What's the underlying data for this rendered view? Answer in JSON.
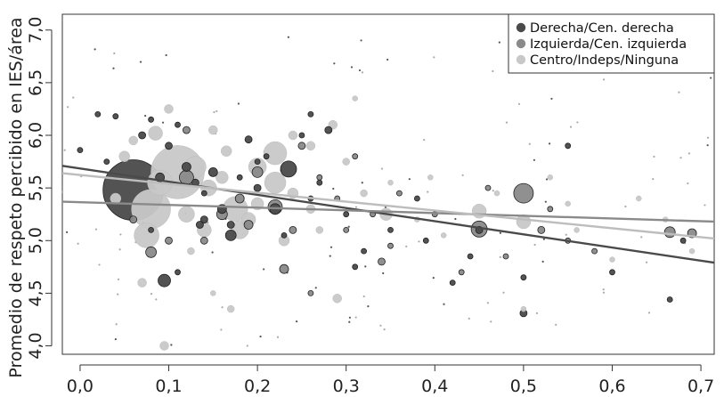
{
  "chart_data": {
    "type": "scatter",
    "title": "",
    "xlabel": "",
    "ylabel": "Promedio de respeto percibido en IES/área",
    "xlim": [
      -0.02,
      0.715
    ],
    "ylim": [
      3.92,
      7.15
    ],
    "x_ticks": [
      "0,0",
      "0,1",
      "0,2",
      "0,3",
      "0,4",
      "0,5",
      "0,6",
      "0,7"
    ],
    "x_tick_values": [
      0.0,
      0.1,
      0.2,
      0.3,
      0.4,
      0.5,
      0.6,
      0.7
    ],
    "y_ticks": [
      "4,0",
      "4,5",
      "5,0",
      "5,5",
      "6,0",
      "6,5",
      "7,0"
    ],
    "y_tick_values": [
      4.0,
      4.5,
      5.0,
      5.5,
      6.0,
      6.5,
      7.0
    ],
    "grid": false,
    "legend_position": "top-right",
    "series": [
      {
        "name": "Derecha/Cen. derecha",
        "color": "#4a4a4a",
        "fit_line": [
          [
            -0.02,
            5.71
          ],
          [
            0.715,
            4.79
          ]
        ],
        "points": [
          [
            0.06,
            5.48,
            34
          ],
          [
            0.0,
            5.86,
            3
          ],
          [
            0.02,
            6.2,
            3
          ],
          [
            0.03,
            5.75,
            3
          ],
          [
            0.04,
            6.18,
            3
          ],
          [
            0.07,
            6.0,
            4
          ],
          [
            0.08,
            6.15,
            3
          ],
          [
            0.09,
            5.6,
            5
          ],
          [
            0.095,
            4.62,
            7
          ],
          [
            0.1,
            5.9,
            4
          ],
          [
            0.11,
            6.1,
            3
          ],
          [
            0.12,
            5.7,
            5
          ],
          [
            0.13,
            5.55,
            4
          ],
          [
            0.135,
            5.15,
            4
          ],
          [
            0.14,
            5.2,
            4
          ],
          [
            0.15,
            5.65,
            5
          ],
          [
            0.16,
            5.3,
            5
          ],
          [
            0.17,
            5.05,
            6
          ],
          [
            0.18,
            5.6,
            3
          ],
          [
            0.19,
            5.96,
            4
          ],
          [
            0.2,
            5.5,
            4
          ],
          [
            0.21,
            5.8,
            3
          ],
          [
            0.22,
            5.3,
            6
          ],
          [
            0.235,
            5.68,
            9
          ],
          [
            0.25,
            6.0,
            3
          ],
          [
            0.26,
            5.4,
            3
          ],
          [
            0.28,
            6.05,
            4
          ],
          [
            0.3,
            5.25,
            3
          ],
          [
            0.32,
            4.9,
            3
          ],
          [
            0.35,
            5.1,
            3
          ],
          [
            0.39,
            5.0,
            3
          ],
          [
            0.42,
            4.6,
            3
          ],
          [
            0.45,
            5.1,
            4
          ],
          [
            0.5,
            4.31,
            4
          ],
          [
            0.5,
            4.65,
            3
          ],
          [
            0.55,
            5.9,
            3
          ],
          [
            0.6,
            4.7,
            3
          ],
          [
            0.665,
            4.44,
            3
          ],
          [
            0.68,
            5.0,
            3
          ],
          [
            0.2,
            5.75,
            3
          ],
          [
            0.17,
            5.15,
            4
          ],
          [
            0.14,
            5.45,
            3
          ],
          [
            0.11,
            4.7,
            3
          ],
          [
            0.08,
            5.1,
            3
          ],
          [
            0.23,
            5.05,
            3
          ],
          [
            0.27,
            5.55,
            3
          ],
          [
            0.31,
            4.75,
            3
          ],
          [
            0.38,
            5.4,
            3
          ],
          [
            0.44,
            4.85,
            3
          ],
          [
            0.26,
            6.2,
            3
          ]
        ]
      },
      {
        "name": "Izquierda/Cen. izquierda",
        "color": "#8a8a8a",
        "fit_line": [
          [
            -0.02,
            5.37
          ],
          [
            0.715,
            5.18
          ]
        ],
        "points": [
          [
            0.08,
            4.89,
            6
          ],
          [
            0.12,
            5.6,
            8
          ],
          [
            0.16,
            5.25,
            6
          ],
          [
            0.18,
            5.4,
            5
          ],
          [
            0.2,
            5.65,
            6
          ],
          [
            0.22,
            5.32,
            8
          ],
          [
            0.23,
            4.73,
            5
          ],
          [
            0.24,
            5.1,
            4
          ],
          [
            0.25,
            5.9,
            4
          ],
          [
            0.27,
            5.6,
            3
          ],
          [
            0.29,
            5.4,
            3
          ],
          [
            0.3,
            5.1,
            3
          ],
          [
            0.31,
            5.8,
            3
          ],
          [
            0.33,
            5.25,
            3
          ],
          [
            0.34,
            4.8,
            4
          ],
          [
            0.36,
            5.45,
            3
          ],
          [
            0.4,
            5.25,
            3
          ],
          [
            0.45,
            5.11,
            9
          ],
          [
            0.46,
            5.5,
            3
          ],
          [
            0.5,
            5.45,
            11
          ],
          [
            0.52,
            5.1,
            4
          ],
          [
            0.55,
            5.0,
            3
          ],
          [
            0.58,
            4.9,
            3
          ],
          [
            0.665,
            5.08,
            6
          ],
          [
            0.69,
            5.07,
            5
          ],
          [
            0.06,
            5.2,
            4
          ],
          [
            0.1,
            5.0,
            4
          ],
          [
            0.14,
            5.0,
            4
          ],
          [
            0.26,
            4.5,
            3
          ],
          [
            0.35,
            4.95,
            3
          ],
          [
            0.43,
            4.7,
            3
          ],
          [
            0.48,
            4.85,
            3
          ],
          [
            0.53,
            5.3,
            3
          ],
          [
            0.12,
            6.05,
            4
          ],
          [
            0.19,
            5.15,
            5
          ]
        ]
      },
      {
        "name": "Centro/Indeps/Ninguna",
        "color": "#c8c8c8",
        "fit_line": [
          [
            -0.02,
            5.64
          ],
          [
            0.715,
            5.02
          ]
        ],
        "points": [
          [
            0.11,
            5.65,
            30
          ],
          [
            0.08,
            5.3,
            22
          ],
          [
            0.075,
            5.05,
            14
          ],
          [
            0.09,
            5.55,
            14
          ],
          [
            0.13,
            5.7,
            12
          ],
          [
            0.1,
            6.25,
            5
          ],
          [
            0.085,
            6.02,
            8
          ],
          [
            0.14,
            5.1,
            8
          ],
          [
            0.145,
            5.5,
            9
          ],
          [
            0.175,
            5.3,
            14
          ],
          [
            0.18,
            5.1,
            10
          ],
          [
            0.2,
            5.7,
            10
          ],
          [
            0.22,
            5.55,
            12
          ],
          [
            0.22,
            5.83,
            13
          ],
          [
            0.165,
            5.85,
            6
          ],
          [
            0.19,
            5.2,
            8
          ],
          [
            0.26,
            5.9,
            5
          ],
          [
            0.285,
            6.1,
            5
          ],
          [
            0.29,
            4.45,
            5
          ],
          [
            0.31,
            6.35,
            3
          ],
          [
            0.32,
            5.45,
            4
          ],
          [
            0.345,
            5.25,
            7
          ],
          [
            0.38,
            5.2,
            3
          ],
          [
            0.395,
            5.6,
            3
          ],
          [
            0.45,
            5.28,
            8
          ],
          [
            0.5,
            5.18,
            8
          ],
          [
            0.5,
            4.35,
            3
          ],
          [
            0.53,
            5.6,
            3
          ],
          [
            0.55,
            5.35,
            3
          ],
          [
            0.6,
            4.82,
            3
          ],
          [
            0.66,
            5.2,
            3
          ],
          [
            0.69,
            4.9,
            3
          ],
          [
            0.07,
            4.6,
            5
          ],
          [
            0.095,
            4.0,
            5
          ],
          [
            0.125,
            4.9,
            4
          ],
          [
            0.15,
            4.5,
            3
          ],
          [
            0.17,
            4.35,
            4
          ],
          [
            0.23,
            5.0,
            6
          ],
          [
            0.24,
            6.0,
            5
          ],
          [
            0.27,
            5.1,
            4
          ],
          [
            0.05,
            5.8,
            6
          ],
          [
            0.06,
            5.95,
            5
          ],
          [
            0.04,
            5.4,
            6
          ],
          [
            0.15,
            6.05,
            5
          ],
          [
            0.2,
            5.35,
            7
          ],
          [
            0.26,
            5.3,
            5
          ],
          [
            0.3,
            5.75,
            4
          ],
          [
            0.35,
            5.55,
            3
          ],
          [
            0.41,
            5.05,
            3
          ],
          [
            0.47,
            5.45,
            3
          ],
          [
            0.56,
            5.1,
            3
          ],
          [
            0.63,
            5.4,
            3
          ],
          [
            0.12,
            5.25,
            9
          ],
          [
            0.16,
            5.6,
            7
          ],
          [
            0.24,
            5.45,
            6
          ]
        ]
      }
    ]
  }
}
